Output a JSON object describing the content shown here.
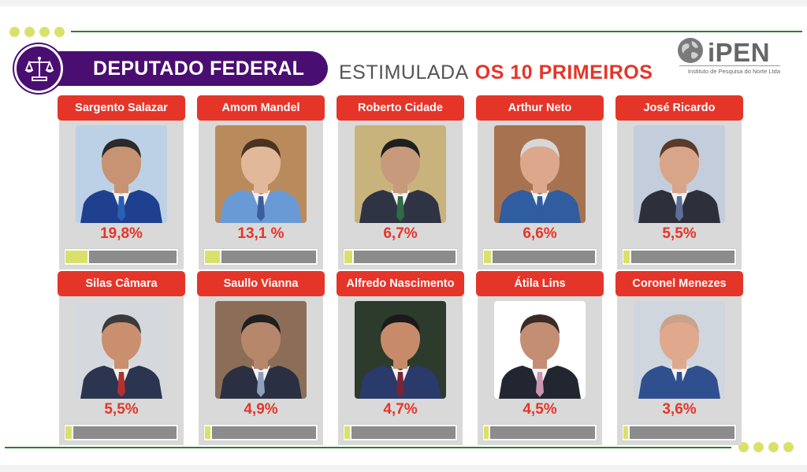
{
  "header": {
    "title": "DEPUTADO FEDERAL",
    "subtitle_plain": "ESTIMULADA",
    "subtitle_highlight": "OS 10 PRIMEIROS",
    "logo_name": "iPEN",
    "logo_tagline": "Instituto de Pesquisa do Norte Ltda"
  },
  "colors": {
    "title_purple": "#4a0e72",
    "name_red": "#e53529",
    "bar_fill": "#d8e26b",
    "bar_rest": "#8c8c8c",
    "accent_green": "#2e7d32"
  },
  "chart_data": {
    "type": "bar",
    "title": "",
    "categories": [
      "Sargento Salazar",
      "Amom Mandel",
      "Roberto Cidade",
      "Arthur Neto",
      "José Ricardo",
      "Silas Câmara",
      "Saullo Vianna",
      "Alfredo Nascimento",
      "Átila Lins",
      "Coronel Menezes"
    ],
    "values": [
      19.8,
      13.1,
      6.7,
      6.6,
      5.5,
      5.5,
      4.9,
      4.7,
      4.5,
      3.6
    ],
    "value_labels": [
      "19,8%",
      "13,1 %",
      "6,7%",
      "6,6%",
      "5,5%",
      "5,5%",
      "4,9%",
      "4,7%",
      "4,5%",
      "3,6%"
    ],
    "unit": "%",
    "ylim": [
      0,
      100
    ]
  },
  "candidates": [
    {
      "name": "Sargento Salazar",
      "pct": "19,8%",
      "suit": "#1f3f8f",
      "tie": "#2b5fb3",
      "skin": "#c89373",
      "hair": "#2a2a2a",
      "bg": "#bcd1e6"
    },
    {
      "name": "Amom Mandel",
      "pct": "13,1 %",
      "suit": "#6a9ad6",
      "tie": "#3c5f9a",
      "skin": "#e2b89a",
      "hair": "#4a3322",
      "bg": "#b98b5c"
    },
    {
      "name": "Roberto Cidade",
      "pct": "6,7%",
      "suit": "#2e3444",
      "tie": "#2f6b45",
      "skin": "#c79a7c",
      "hair": "#1f1f1f",
      "bg": "#c9b37c"
    },
    {
      "name": "Arthur Neto",
      "pct": "6,6%",
      "suit": "#2f5d9f",
      "tie": "#2f5d9f",
      "skin": "#dca78a",
      "hair": "#d7d7d7",
      "bg": "#a67250"
    },
    {
      "name": "José Ricardo",
      "pct": "5,5%",
      "suit": "#2d2f3a",
      "tie": "#5d6f9a",
      "skin": "#d9a589",
      "hair": "#5a3a2a",
      "bg": "#c4cddb"
    },
    {
      "name": "Silas Câmara",
      "pct": "5,5%",
      "suit": "#2c3550",
      "tie": "#b23030",
      "skin": "#c98f6e",
      "hair": "#3a3a3a",
      "bg": "#d5d9de"
    },
    {
      "name": "Saullo Vianna",
      "pct": "4,9%",
      "suit": "#2a3042",
      "tie": "#8da0c0",
      "skin": "#b7876c",
      "hair": "#1f1f1f",
      "bg": "#8c6e58"
    },
    {
      "name": "Alfredo Nascimento",
      "pct": "4,7%",
      "suit": "#2a3a6a",
      "tie": "#7a2436",
      "skin": "#c88b6a",
      "hair": "#1a1a1a",
      "bg": "#2c3b2c"
    },
    {
      "name": "Átila Lins",
      "pct": "4,5%",
      "suit": "#222630",
      "tie": "#c995b0",
      "skin": "#c48e74",
      "hair": "#3a2c24",
      "bg": "#ffffff"
    },
    {
      "name": "Coronel Menezes",
      "pct": "3,6%",
      "suit": "#2f4f8f",
      "tie": "#2f4f8f",
      "skin": "#e0a88c",
      "hair": "#c9a28a",
      "bg": "#cfd6dd"
    }
  ]
}
